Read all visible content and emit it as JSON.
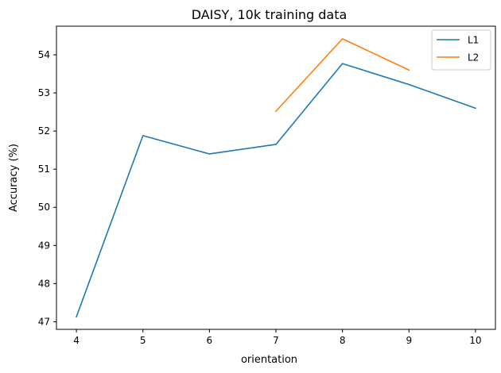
{
  "chart_data": {
    "type": "line",
    "title": "DAISY, 10k training data",
    "xlabel": "orientation",
    "ylabel": "Accuracy (%)",
    "xlim": [
      3.7,
      10.3
    ],
    "ylim": [
      46.8,
      54.75
    ],
    "xticks": [
      4,
      5,
      6,
      7,
      8,
      9,
      10
    ],
    "yticks": [
      47,
      48,
      49,
      50,
      51,
      52,
      53,
      54
    ],
    "grid": false,
    "legend_position": "top-right",
    "series": [
      {
        "name": "L1",
        "color": "#1f77b4",
        "x": [
          4,
          5,
          6,
          7,
          8,
          9,
          10
        ],
        "y": [
          47.13,
          51.88,
          51.4,
          51.65,
          53.77,
          53.22,
          52.6
        ]
      },
      {
        "name": "L2",
        "color": "#ff7f0e",
        "x": [
          7,
          8,
          9
        ],
        "y": [
          52.52,
          54.42,
          53.6
        ]
      }
    ]
  }
}
